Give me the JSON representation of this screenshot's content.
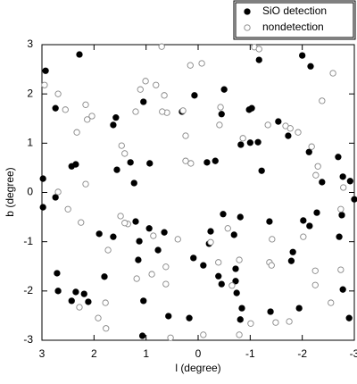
{
  "chart_data": {
    "type": "scatter",
    "xlabel": "l (degree)",
    "ylabel": "b (degree)",
    "xlim": [
      3,
      -3
    ],
    "ylim": [
      -3,
      3
    ],
    "xticks": [
      3,
      2,
      1,
      0,
      -1,
      -2,
      -3
    ],
    "yticks": [
      -3,
      -2,
      -1,
      0,
      1,
      2,
      3
    ],
    "legend": "top-right-outside",
    "series": [
      {
        "name": "SiO detection",
        "color": "#000",
        "filled": true,
        "x": [
          2.93,
          2.28,
          2.74,
          1.63,
          1.58,
          1.05,
          1.3,
          1.56,
          0.93,
          2.43,
          2.35,
          1.23,
          2.98,
          2.98,
          2.74,
          0.31,
          0.07,
          -0.5,
          -0.45,
          -0.17,
          -0.33,
          -1.17,
          -1.03,
          -0.98,
          -0.82,
          -1.0,
          -1.15,
          -1.22,
          -1.54,
          -1.73,
          -2.0,
          -2.16,
          -2.13,
          -2.69,
          -2.38,
          -2.78,
          -2.92,
          -3.0,
          -2.76,
          -2.71,
          -2.28,
          -2.02,
          -2.14,
          -1.37,
          -1.82,
          -1.79,
          -0.48,
          -0.24,
          -0.81,
          -0.69,
          -0.21,
          0.09,
          -0.1,
          -0.39,
          -0.45,
          -0.72,
          -0.72,
          -0.74,
          -0.84,
          -0.81,
          -1.39,
          -1.94,
          -2.78,
          -2.9,
          0.17,
          0.57,
          1.05,
          1.07,
          1.15,
          1.13,
          1.2,
          0.94,
          0.65,
          0.77,
          1.9,
          1.63,
          1.8,
          2.11,
          2.19,
          2.35,
          2.43,
          2.69,
          2.71
        ],
        "y": [
          2.47,
          2.8,
          1.71,
          1.37,
          1.52,
          1.84,
          0.61,
          0.46,
          0.59,
          0.53,
          0.57,
          0.19,
          0.28,
          -0.3,
          -0.1,
          1.64,
          1.97,
          2.09,
          1.59,
          0.61,
          0.64,
          2.69,
          1.71,
          1.68,
          0.97,
          1.01,
          1.02,
          0.44,
          1.44,
          1.15,
          2.78,
          2.56,
          0.82,
          0.72,
          0.21,
          0.32,
          0.23,
          -0.14,
          -0.46,
          -0.9,
          -0.41,
          -0.57,
          -0.68,
          -0.59,
          -1.21,
          -1.39,
          -0.44,
          -0.79,
          -0.5,
          -0.86,
          -1.04,
          -1.33,
          -1.48,
          -1.7,
          -1.86,
          -1.55,
          -1.8,
          -2.04,
          -2.35,
          -2.58,
          -2.42,
          -2.35,
          -1.97,
          -2.55,
          -2.55,
          -2.51,
          -2.2,
          -2.91,
          -1.37,
          -0.99,
          -0.59,
          -0.73,
          -0.81,
          -1.17,
          -0.84,
          -0.9,
          -1.71,
          -2.22,
          -2.06,
          -2.02,
          -2.2,
          -2.0,
          -1.64
        ]
      },
      {
        "name": "nondetection",
        "color": "#888",
        "filled": false,
        "x": [
          2.95,
          2.69,
          2.55,
          2.5,
          2.69,
          2.16,
          2.13,
          2.04,
          2.33,
          2.16,
          2.25,
          2.28,
          1.92,
          1.77,
          1.78,
          1.73,
          1.47,
          1.41,
          1.49,
          1.35,
          1.41,
          1.11,
          1.01,
          1.2,
          0.65,
          0.81,
          0.7,
          0.6,
          0.69,
          0.29,
          0.15,
          -0.07,
          0.24,
          0.24,
          0.14,
          0.39,
          0.62,
          0.62,
          0.89,
          1.18,
          0.86,
          0.53,
          -0.1,
          -0.24,
          -0.39,
          -0.43,
          -0.41,
          -0.86,
          -1.08,
          -1.17,
          -1.34,
          -1.68,
          -1.77,
          -1.92,
          -2.18,
          -2.3,
          -2.26,
          -2.59,
          -2.38,
          -2.02,
          -1.42,
          -1.37,
          -1.41,
          -2.25,
          -2.25,
          -2.55,
          -2.74,
          -2.79,
          -2.74,
          -0.65,
          -0.79,
          -0.57,
          -0.79,
          -1.49,
          -1.75,
          -1.01
        ],
        "y": [
          2.18,
          2.0,
          1.68,
          -0.34,
          0.01,
          1.78,
          1.48,
          1.55,
          1.22,
          0.17,
          -0.61,
          -2.33,
          -2.55,
          -2.76,
          -2.24,
          -1.17,
          0.95,
          0.79,
          -0.48,
          -0.64,
          -0.62,
          2.09,
          2.26,
          1.64,
          1.97,
          2.18,
          2.96,
          1.62,
          1.64,
          1.66,
          2.58,
          2.62,
          1.15,
          0.64,
          0.59,
          -0.95,
          -1.51,
          -1.86,
          -1.66,
          -1.75,
          -0.88,
          -2.95,
          -2.89,
          -1.01,
          -1.42,
          1.73,
          1.37,
          1.1,
          2.95,
          2.91,
          1.37,
          1.35,
          1.3,
          1.22,
          0.93,
          0.53,
          0.35,
          2.42,
          1.86,
          -0.9,
          -0.95,
          -1.42,
          -1.48,
          -1.59,
          -1.88,
          -2.24,
          -1.57,
          0.1,
          -0.34,
          -1.89,
          -1.37,
          -0.73,
          -2.89,
          -2.64,
          -2.62,
          -2.66
        ]
      }
    ]
  }
}
